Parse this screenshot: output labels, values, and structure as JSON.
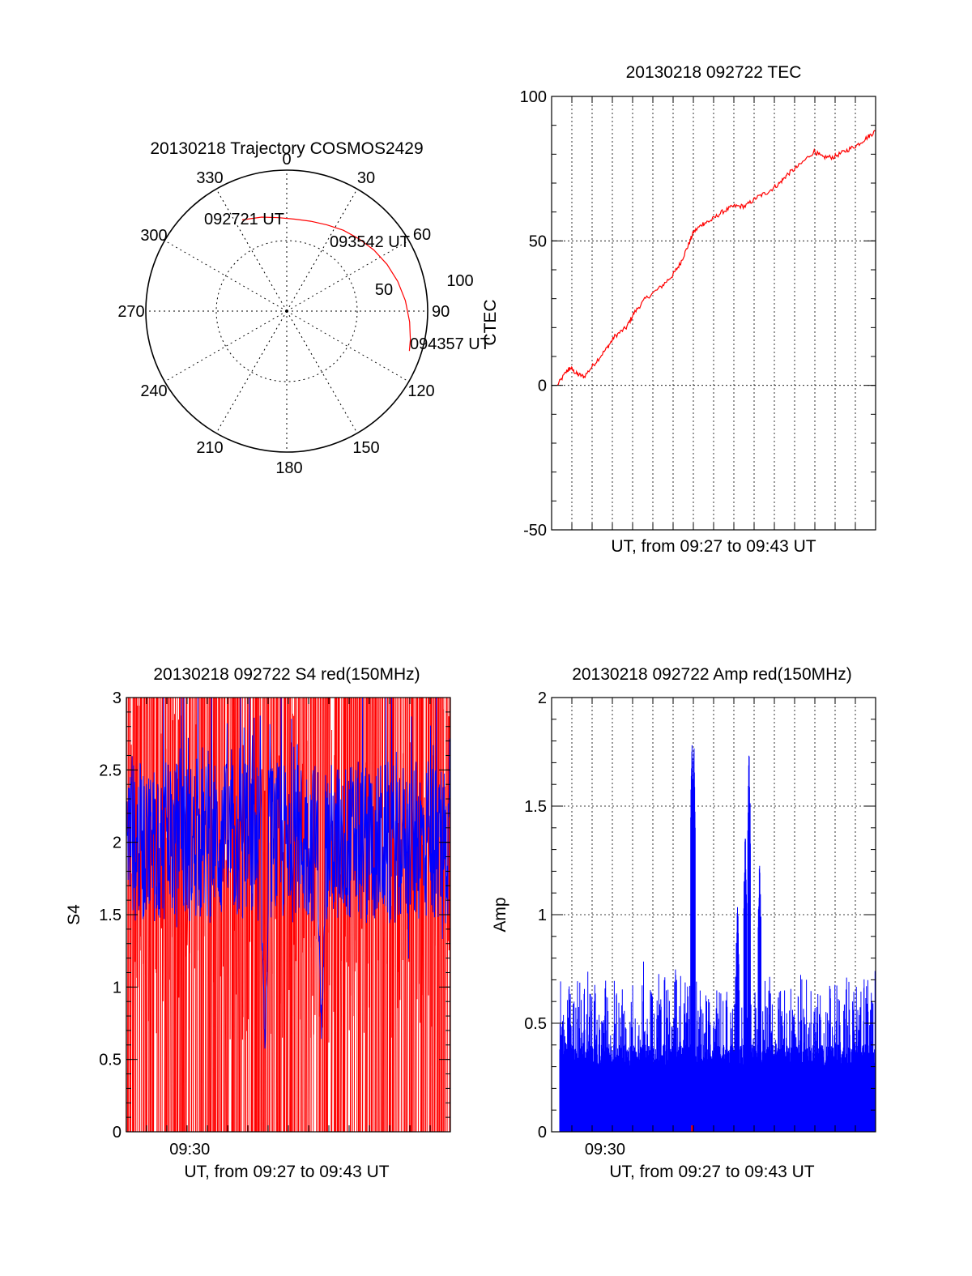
{
  "colors": {
    "red": "#ff0000",
    "blue": "#0000ff",
    "axis": "#000000"
  },
  "chart_data": [
    {
      "id": "trajectory",
      "type": "polar",
      "title": "20130218 Trajectory COSMOS2429",
      "azimuth_labels": [
        "0",
        "30",
        "60",
        "90",
        "120",
        "150",
        "180",
        "210",
        "240",
        "270",
        "300",
        "330"
      ],
      "radial_labels": [
        "50",
        "100"
      ],
      "rlim": [
        0,
        100
      ],
      "grid": true,
      "track": {
        "color": "red",
        "azimuth": [
          334,
          345,
          355,
          5,
          15,
          25,
          35,
          45,
          55,
          65,
          75,
          85,
          95,
          103,
          108
        ],
        "zenith": [
          72,
          69,
          66.5,
          65.5,
          66,
          67.5,
          70,
          72.5,
          75.5,
          78.5,
          81.5,
          84.5,
          87.5,
          90,
          91.5
        ]
      },
      "annotations": [
        {
          "text": "092721 UT",
          "az": 334,
          "zen": 72
        },
        {
          "text": "093542 UT",
          "az": 55,
          "zen": 75.5
        },
        {
          "text": "094357 UT",
          "az": 108,
          "zen": 91.5
        }
      ]
    },
    {
      "id": "tec",
      "type": "line",
      "title": "20130218 092722 TEC",
      "ylabel": "CTEC",
      "xlabel": "UT, from 09:27 to 09:43 UT",
      "ylim": [
        -50,
        100
      ],
      "yticks": [
        "-50",
        "0",
        "50",
        "100"
      ],
      "xlim": [
        0,
        16.6
      ],
      "grid": true,
      "series": [
        {
          "color": "red",
          "x": [
            0,
            0.5,
            0.7,
            1.0,
            1.4,
            2.0,
            2.6,
            3.0,
            3.6,
            4.0,
            4.6,
            5.4,
            6.0,
            6.4,
            6.8,
            7.1,
            7.6,
            8.0,
            8.6,
            9.2,
            9.8,
            10.4,
            11.0,
            11.6,
            12.0,
            12.6,
            13.4,
            13.8,
            14.4,
            15.0,
            15.6,
            16.2,
            16.6
          ],
          "y": [
            0,
            5,
            6,
            4,
            3,
            8,
            13,
            17,
            20,
            25,
            30,
            34,
            38,
            42,
            48,
            53,
            56,
            57,
            60,
            62,
            62,
            65,
            67,
            70,
            73,
            76,
            81,
            79,
            79,
            81,
            83,
            86,
            88
          ]
        }
      ]
    },
    {
      "id": "s4",
      "type": "line",
      "title": "20130218 092722 S4 red(150MHz)",
      "ylabel": "S4",
      "xlabel": "UT, from 09:27 to 09:43 UT",
      "ylim": [
        0,
        3
      ],
      "yticks": [
        "0",
        "0.5",
        "1",
        "1.5",
        "2",
        "2.5",
        "3"
      ],
      "xticks": [
        {
          "x": 3,
          "label": "09:30"
        }
      ],
      "xlim": [
        0,
        16.6
      ],
      "grid": false,
      "series": [
        {
          "name": "",
          "color": "red",
          "style": "dense-spikes",
          "low": 0,
          "high": 3,
          "baseline": 1.5
        },
        {
          "name": "",
          "color": "blue",
          "style": "noisy",
          "mean": 2.0,
          "spread": 0.35,
          "dips": [
            {
              "x": 7.1,
              "y": 0.5
            },
            {
              "x": 10.0,
              "y": 0.6
            }
          ]
        }
      ]
    },
    {
      "id": "amp",
      "type": "bar",
      "title": "20130218 092722 Amp red(150MHz)",
      "ylabel": "Amp",
      "xlabel": "UT, from 09:27 to 09:43 UT",
      "ylim": [
        0,
        2
      ],
      "yticks": [
        "0",
        "0.5",
        "1",
        "1.5",
        "2"
      ],
      "xticks": [
        {
          "x": 1.7,
          "label": "09:30"
        }
      ],
      "xlim": [
        0,
        16.6
      ],
      "grid": true,
      "series": [
        {
          "color": "blue",
          "baseline_level": 0.35,
          "noise": 0.35,
          "peaks": [
            {
              "x": 6.95,
              "y": 1.9
            },
            {
              "x": 7.05,
              "y": 1.85
            },
            {
              "x": 9.35,
              "y": 1.1
            },
            {
              "x": 9.75,
              "y": 1.45
            },
            {
              "x": 9.95,
              "y": 1.83
            },
            {
              "x": 10.5,
              "y": 1.3
            }
          ]
        }
      ]
    }
  ]
}
